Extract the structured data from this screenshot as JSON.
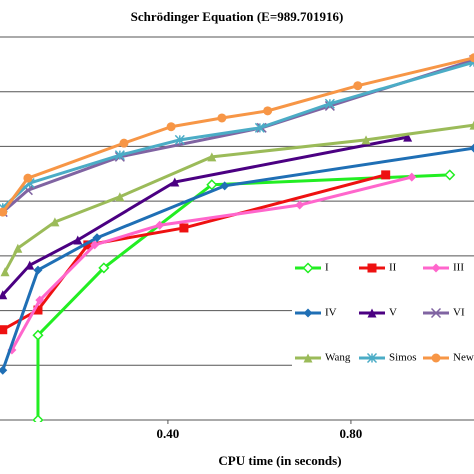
{
  "chart_data": {
    "type": "line",
    "title": "Schrödinger  Equation  (E=989.701916)",
    "xlabel": "CPU time (in seconds)",
    "xlim": [
      0.033,
      1.069
    ],
    "xticks": [
      {
        "value": 0.4,
        "label": "0.40"
      },
      {
        "value": 0.8,
        "label": "0.80"
      }
    ],
    "ylim": [
      0,
      7
    ],
    "yticks": [
      0,
      1,
      2,
      3,
      4,
      5,
      6,
      7
    ],
    "grid": true,
    "series": [
      {
        "name": "I",
        "color": "#22ee22",
        "marker": "diamond-open",
        "x": [
          0.116,
          0.116,
          0.26,
          0.496,
          1.016
        ],
        "values": [
          0,
          1.55,
          2.78,
          4.3,
          4.48
        ]
      },
      {
        "name": "II",
        "color": "#ee1111",
        "marker": "square",
        "x": [
          0.039,
          0.116,
          0.225,
          0.435,
          0.876
        ],
        "values": [
          1.65,
          2.01,
          3.2,
          3.51,
          4.48
        ]
      },
      {
        "name": "III",
        "color": "#ff66cc",
        "marker": "diamond",
        "x": [
          0.059,
          0.12,
          0.24,
          0.382,
          0.688,
          0.933
        ],
        "values": [
          1.28,
          2.19,
          3.2,
          3.56,
          3.93,
          4.44
        ]
      },
      {
        "name": "IV",
        "color": "#1f6fb5",
        "marker": "diamond",
        "x": [
          0.039,
          0.116,
          0.245,
          0.524,
          1.069
        ],
        "values": [
          0.91,
          2.74,
          3.33,
          4.28,
          4.97
        ]
      },
      {
        "name": "V",
        "color": "#4b0082",
        "marker": "triangle",
        "x": [
          0.039,
          0.098,
          0.203,
          0.415,
          0.924
        ],
        "values": [
          2.29,
          2.83,
          3.29,
          4.35,
          5.17
        ]
      },
      {
        "name": "VI",
        "color": "#8064a2",
        "marker": "x",
        "x": [
          0.039,
          0.094,
          0.295,
          0.605,
          0.754,
          1.069
        ],
        "values": [
          3.8,
          4.2,
          4.81,
          5.34,
          5.74,
          6.58
        ]
      },
      {
        "name": "Wang",
        "color": "#9bbb59",
        "marker": "triangle",
        "x": [
          0.044,
          0.072,
          0.153,
          0.295,
          0.496,
          0.833,
          1.069
        ],
        "values": [
          2.71,
          3.14,
          3.62,
          4.08,
          4.81,
          5.12,
          5.39
        ]
      },
      {
        "name": "Simos",
        "color": "#4bacc6",
        "marker": "star",
        "x": [
          0.039,
          0.098,
          0.295,
          0.426,
          0.601,
          0.754,
          1.069
        ],
        "values": [
          3.88,
          4.33,
          4.84,
          5.12,
          5.34,
          5.78,
          6.54
        ]
      },
      {
        "name": "New",
        "color": "#f79646",
        "marker": "circle",
        "x": [
          0.039,
          0.094,
          0.304,
          0.407,
          0.518,
          0.618,
          0.815,
          1.069
        ],
        "values": [
          3.8,
          4.42,
          5.06,
          5.36,
          5.52,
          5.65,
          6.11,
          6.62
        ]
      }
    ]
  }
}
